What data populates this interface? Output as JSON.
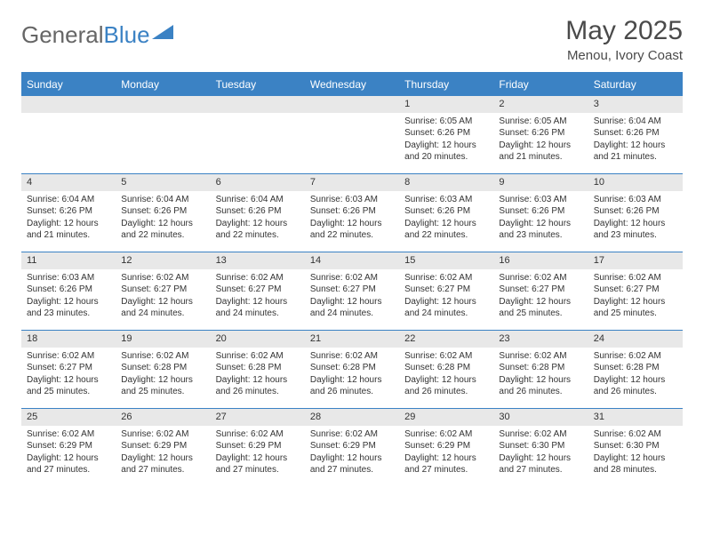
{
  "logo": {
    "part1": "General",
    "part2": "Blue"
  },
  "title": "May 2025",
  "location": "Menou, Ivory Coast",
  "colors": {
    "accent": "#3b82c4",
    "header_text": "#ffffff",
    "daynum_bg": "#e8e8e8",
    "text": "#333333",
    "logo_gray": "#666666"
  },
  "weekdays": [
    "Sunday",
    "Monday",
    "Tuesday",
    "Wednesday",
    "Thursday",
    "Friday",
    "Saturday"
  ],
  "blank_leading": 4,
  "days": [
    {
      "n": "1",
      "sunrise": "6:05 AM",
      "sunset": "6:26 PM",
      "daylight": "12 hours and 20 minutes."
    },
    {
      "n": "2",
      "sunrise": "6:05 AM",
      "sunset": "6:26 PM",
      "daylight": "12 hours and 21 minutes."
    },
    {
      "n": "3",
      "sunrise": "6:04 AM",
      "sunset": "6:26 PM",
      "daylight": "12 hours and 21 minutes."
    },
    {
      "n": "4",
      "sunrise": "6:04 AM",
      "sunset": "6:26 PM",
      "daylight": "12 hours and 21 minutes."
    },
    {
      "n": "5",
      "sunrise": "6:04 AM",
      "sunset": "6:26 PM",
      "daylight": "12 hours and 22 minutes."
    },
    {
      "n": "6",
      "sunrise": "6:04 AM",
      "sunset": "6:26 PM",
      "daylight": "12 hours and 22 minutes."
    },
    {
      "n": "7",
      "sunrise": "6:03 AM",
      "sunset": "6:26 PM",
      "daylight": "12 hours and 22 minutes."
    },
    {
      "n": "8",
      "sunrise": "6:03 AM",
      "sunset": "6:26 PM",
      "daylight": "12 hours and 22 minutes."
    },
    {
      "n": "9",
      "sunrise": "6:03 AM",
      "sunset": "6:26 PM",
      "daylight": "12 hours and 23 minutes."
    },
    {
      "n": "10",
      "sunrise": "6:03 AM",
      "sunset": "6:26 PM",
      "daylight": "12 hours and 23 minutes."
    },
    {
      "n": "11",
      "sunrise": "6:03 AM",
      "sunset": "6:26 PM",
      "daylight": "12 hours and 23 minutes."
    },
    {
      "n": "12",
      "sunrise": "6:02 AM",
      "sunset": "6:27 PM",
      "daylight": "12 hours and 24 minutes."
    },
    {
      "n": "13",
      "sunrise": "6:02 AM",
      "sunset": "6:27 PM",
      "daylight": "12 hours and 24 minutes."
    },
    {
      "n": "14",
      "sunrise": "6:02 AM",
      "sunset": "6:27 PM",
      "daylight": "12 hours and 24 minutes."
    },
    {
      "n": "15",
      "sunrise": "6:02 AM",
      "sunset": "6:27 PM",
      "daylight": "12 hours and 24 minutes."
    },
    {
      "n": "16",
      "sunrise": "6:02 AM",
      "sunset": "6:27 PM",
      "daylight": "12 hours and 25 minutes."
    },
    {
      "n": "17",
      "sunrise": "6:02 AM",
      "sunset": "6:27 PM",
      "daylight": "12 hours and 25 minutes."
    },
    {
      "n": "18",
      "sunrise": "6:02 AM",
      "sunset": "6:27 PM",
      "daylight": "12 hours and 25 minutes."
    },
    {
      "n": "19",
      "sunrise": "6:02 AM",
      "sunset": "6:28 PM",
      "daylight": "12 hours and 25 minutes."
    },
    {
      "n": "20",
      "sunrise": "6:02 AM",
      "sunset": "6:28 PM",
      "daylight": "12 hours and 26 minutes."
    },
    {
      "n": "21",
      "sunrise": "6:02 AM",
      "sunset": "6:28 PM",
      "daylight": "12 hours and 26 minutes."
    },
    {
      "n": "22",
      "sunrise": "6:02 AM",
      "sunset": "6:28 PM",
      "daylight": "12 hours and 26 minutes."
    },
    {
      "n": "23",
      "sunrise": "6:02 AM",
      "sunset": "6:28 PM",
      "daylight": "12 hours and 26 minutes."
    },
    {
      "n": "24",
      "sunrise": "6:02 AM",
      "sunset": "6:28 PM",
      "daylight": "12 hours and 26 minutes."
    },
    {
      "n": "25",
      "sunrise": "6:02 AM",
      "sunset": "6:29 PM",
      "daylight": "12 hours and 27 minutes."
    },
    {
      "n": "26",
      "sunrise": "6:02 AM",
      "sunset": "6:29 PM",
      "daylight": "12 hours and 27 minutes."
    },
    {
      "n": "27",
      "sunrise": "6:02 AM",
      "sunset": "6:29 PM",
      "daylight": "12 hours and 27 minutes."
    },
    {
      "n": "28",
      "sunrise": "6:02 AM",
      "sunset": "6:29 PM",
      "daylight": "12 hours and 27 minutes."
    },
    {
      "n": "29",
      "sunrise": "6:02 AM",
      "sunset": "6:29 PM",
      "daylight": "12 hours and 27 minutes."
    },
    {
      "n": "30",
      "sunrise": "6:02 AM",
      "sunset": "6:30 PM",
      "daylight": "12 hours and 27 minutes."
    },
    {
      "n": "31",
      "sunrise": "6:02 AM",
      "sunset": "6:30 PM",
      "daylight": "12 hours and 28 minutes."
    }
  ],
  "labels": {
    "sunrise": "Sunrise: ",
    "sunset": "Sunset: ",
    "daylight": "Daylight: "
  }
}
